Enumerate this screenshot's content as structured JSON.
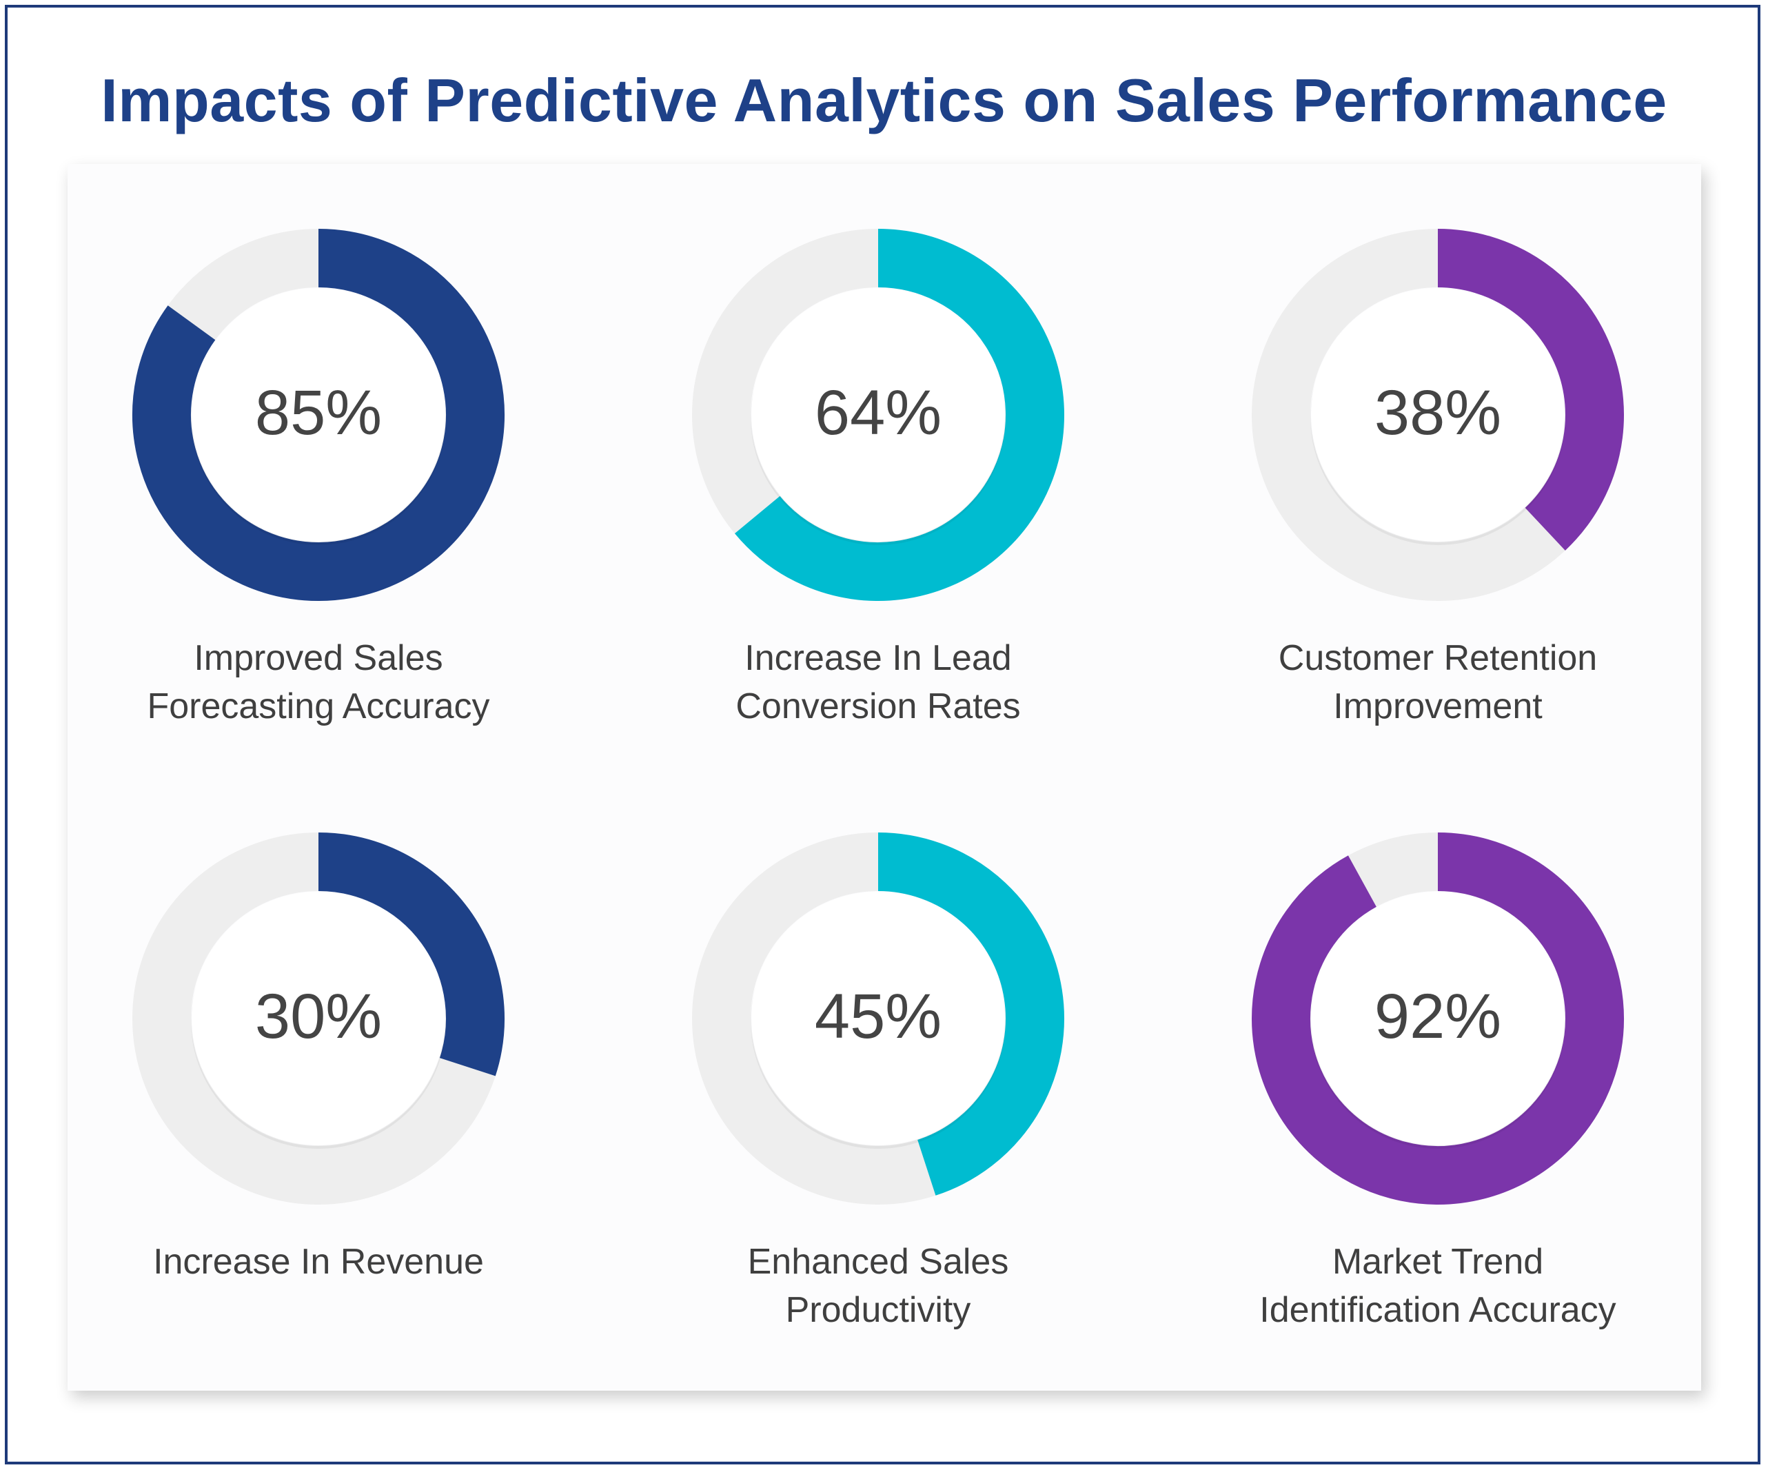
{
  "title": "Impacts of Predictive Analytics on Sales Performance",
  "colors": {
    "navy": "#1e4188",
    "teal": "#00bcd0",
    "purple": "#7b35aa",
    "track": "#eeeeee",
    "text": "#444444"
  },
  "chart_data": {
    "type": "donut",
    "title": "Impacts of Predictive Analytics on Sales Performance",
    "unit": "%",
    "items": [
      {
        "label_lines": [
          "Improved Sales",
          "Forecasting Accuracy"
        ],
        "value": 85,
        "display": "85%",
        "color": "navy"
      },
      {
        "label_lines": [
          "Increase In Lead",
          "Conversion Rates"
        ],
        "value": 64,
        "display": "64%",
        "color": "teal"
      },
      {
        "label_lines": [
          "Customer Retention",
          "Improvement"
        ],
        "value": 38,
        "display": "38%",
        "color": "purple"
      },
      {
        "label_lines": [
          "Increase In Revenue"
        ],
        "value": 30,
        "display": "30%",
        "color": "navy"
      },
      {
        "label_lines": [
          "Enhanced Sales",
          "Productivity"
        ],
        "value": 45,
        "display": "45%",
        "color": "teal"
      },
      {
        "label_lines": [
          "Market Trend",
          "Identification Accuracy"
        ],
        "value": 92,
        "display": "92%",
        "color": "purple"
      }
    ]
  }
}
